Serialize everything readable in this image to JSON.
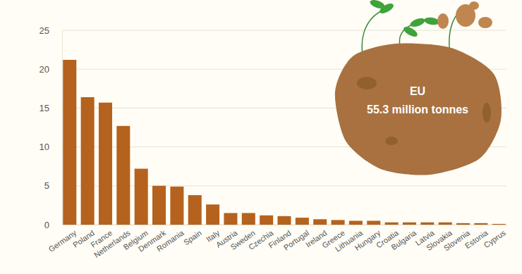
{
  "chart_data": {
    "type": "bar",
    "categories": [
      "Germany",
      "Poland",
      "France",
      "Netherlands",
      "Belgium",
      "Denmark",
      "Romania",
      "Spain",
      "Italy",
      "Austria",
      "Sweden",
      "Czechia",
      "Finland",
      "Portugal",
      "Ireland",
      "Greece",
      "Lithuania",
      "Hungary",
      "Croatia",
      "Bulgaria",
      "Latvia",
      "Slovakia",
      "Slovenia",
      "Estonia",
      "Cyprus"
    ],
    "values": [
      21.2,
      16.4,
      15.7,
      12.7,
      7.2,
      5.0,
      4.9,
      3.8,
      2.6,
      1.5,
      1.5,
      1.2,
      1.1,
      0.9,
      0.7,
      0.6,
      0.5,
      0.5,
      0.3,
      0.3,
      0.3,
      0.3,
      0.2,
      0.2,
      0.1
    ],
    "color": "#b5621e",
    "ylim": [
      0,
      25
    ],
    "yticks": [
      0,
      5,
      10,
      15,
      20,
      25
    ],
    "grid": true,
    "annotations": [
      "EU",
      "55.3 million tonnes"
    ]
  }
}
